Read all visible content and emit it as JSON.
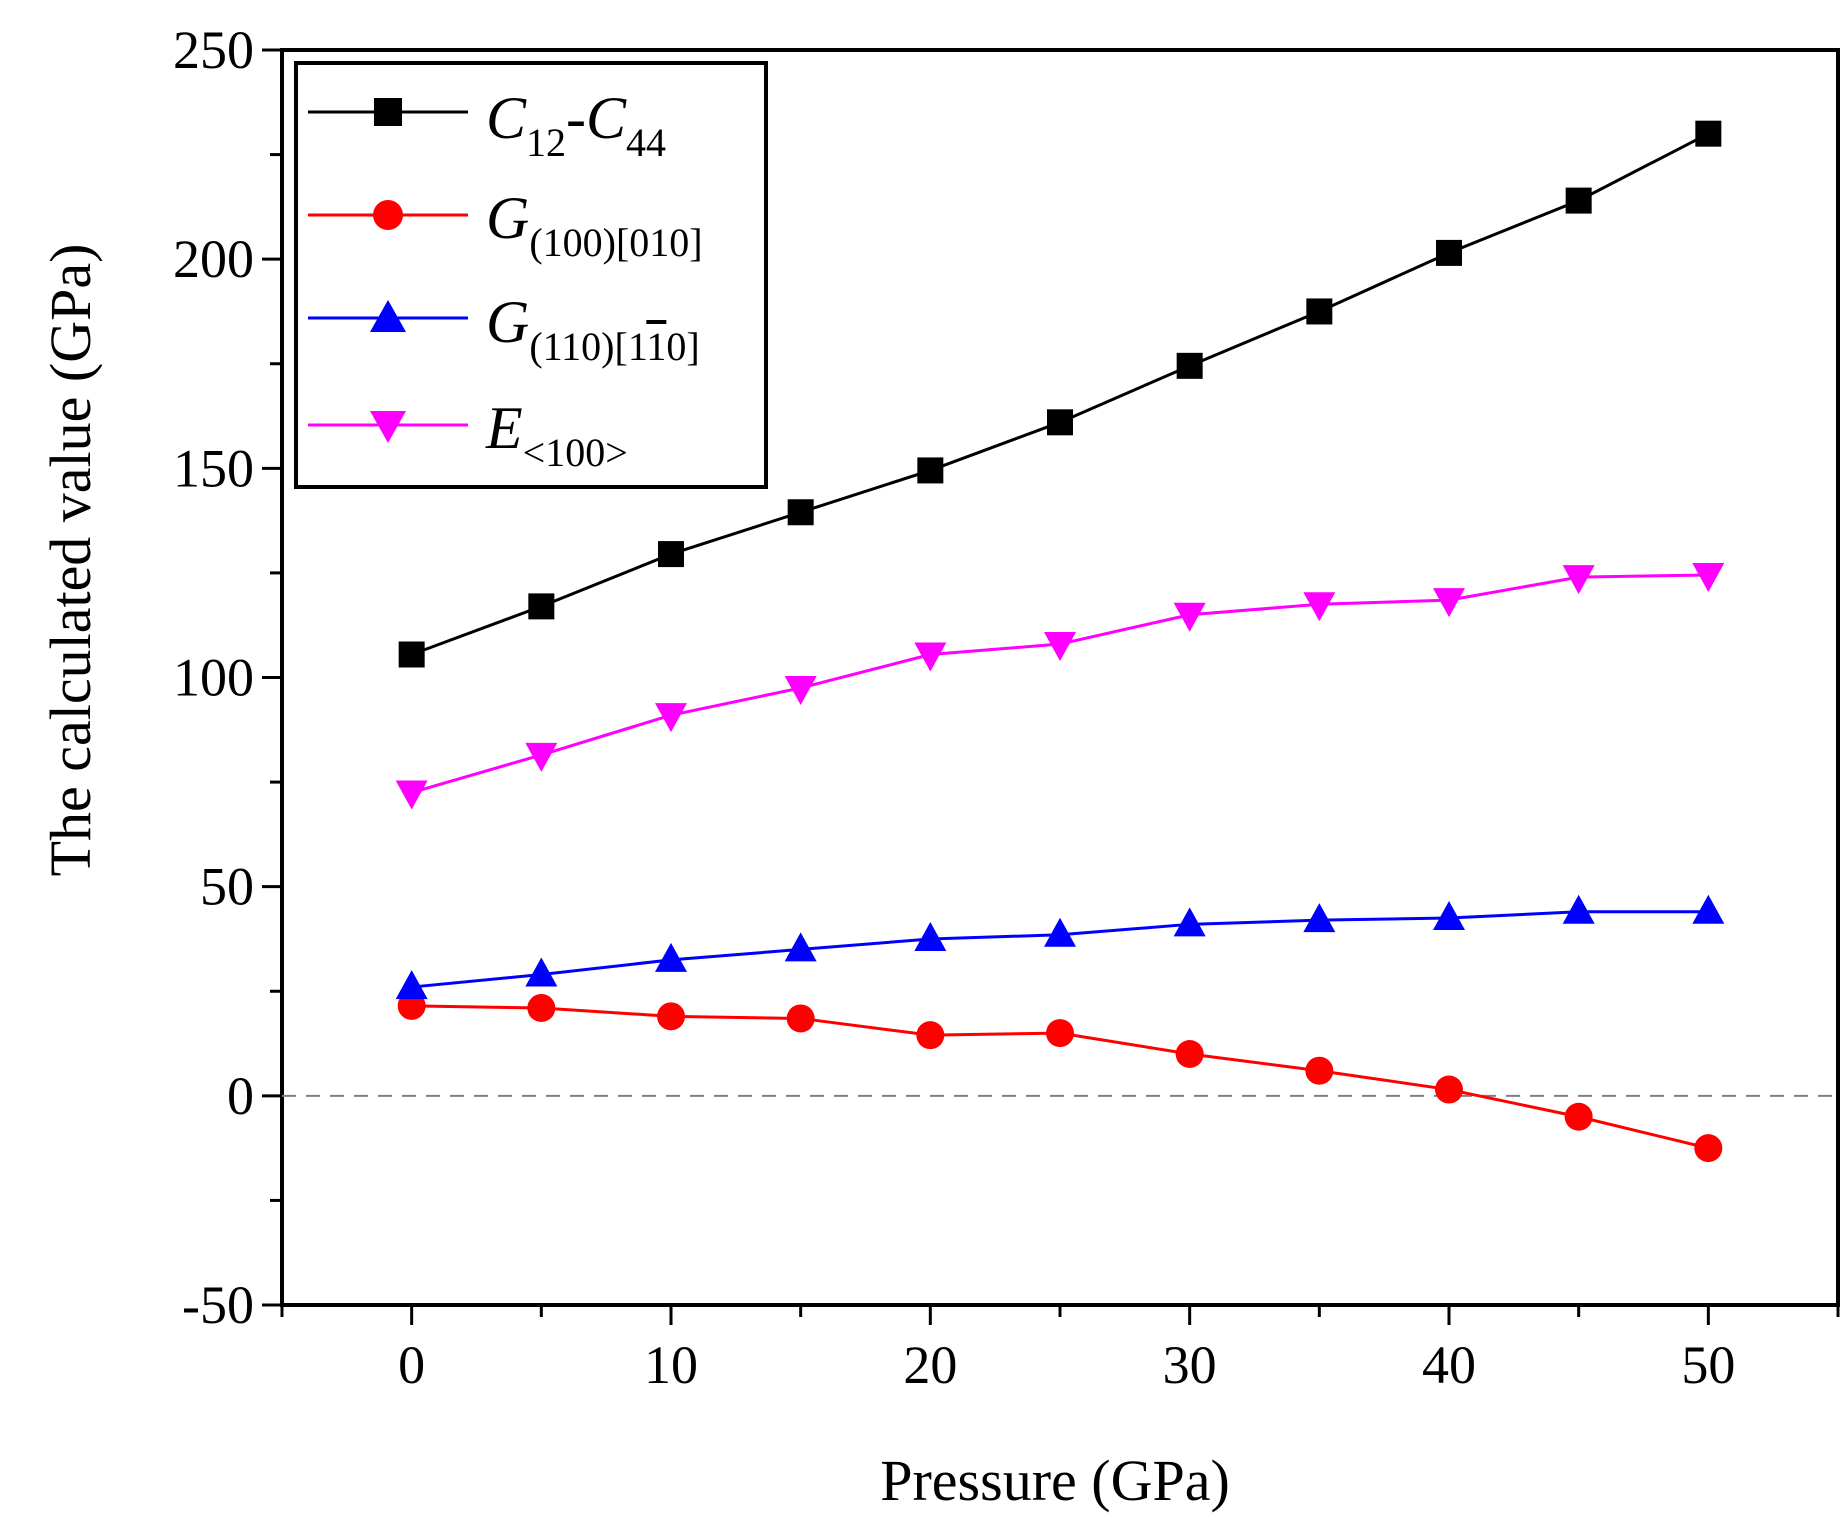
{
  "chart_data": {
    "type": "line",
    "xlabel": "Pressure (GPa)",
    "ylabel": "The calculated value (GPa)",
    "xlim": [
      -5,
      55
    ],
    "ylim": [
      -50,
      250
    ],
    "x_ticks": [
      0,
      10,
      20,
      30,
      40,
      50
    ],
    "y_ticks": [
      -50,
      0,
      50,
      100,
      150,
      200,
      250
    ],
    "grid": false,
    "legend_position": "top-left",
    "reference_line": {
      "y": 0,
      "style": "dashed",
      "color": "#808080"
    },
    "x": [
      0,
      5,
      10,
      15,
      20,
      25,
      30,
      35,
      40,
      45,
      50
    ],
    "series": [
      {
        "name": "C12-C44",
        "label_main": "C",
        "label_sub_1": "12",
        "label_mid": "-C",
        "label_sub_2": "44",
        "color": "#000000",
        "marker": "square",
        "values": [
          105.5,
          117,
          129.5,
          139.5,
          149.5,
          161,
          174.5,
          187.5,
          201.5,
          214,
          230
        ]
      },
      {
        "name": "G(100)[010]",
        "label_main": "G",
        "label_sub_1": "(100)[010]",
        "color": "#ff0000",
        "marker": "circle",
        "values": [
          21.5,
          21,
          19,
          18.5,
          14.5,
          15,
          10,
          6,
          1.5,
          -5,
          -12.5
        ]
      },
      {
        "name": "G(110)[1-10]",
        "label_main": "G",
        "label_sub_1": "(110)[1",
        "label_sub_bar": "1",
        "label_sub_2": "0]",
        "color": "#0000ff",
        "marker": "triangle-up",
        "values": [
          26,
          29,
          32.5,
          35,
          37.5,
          38.5,
          41,
          42,
          42.5,
          44,
          44
        ]
      },
      {
        "name": "E<100>",
        "label_main": "E",
        "label_sub_1": "<100>",
        "color": "#ff00ff",
        "marker": "triangle-down",
        "values": [
          72.5,
          81.5,
          91,
          97.5,
          105.5,
          108,
          115,
          117.5,
          118.5,
          124,
          124.5
        ]
      }
    ]
  }
}
